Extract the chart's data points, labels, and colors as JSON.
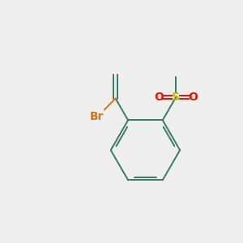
{
  "background_color": "#eeeeee",
  "bond_color": "#3a7a6a",
  "s_color": "#bbbb00",
  "o_color": "#ee1100",
  "br_color": "#cc7722",
  "br_label": "Br",
  "s_label": "S",
  "o_label": "O",
  "figsize": [
    3.0,
    3.0
  ],
  "dpi": 100,
  "lw": 1.4
}
